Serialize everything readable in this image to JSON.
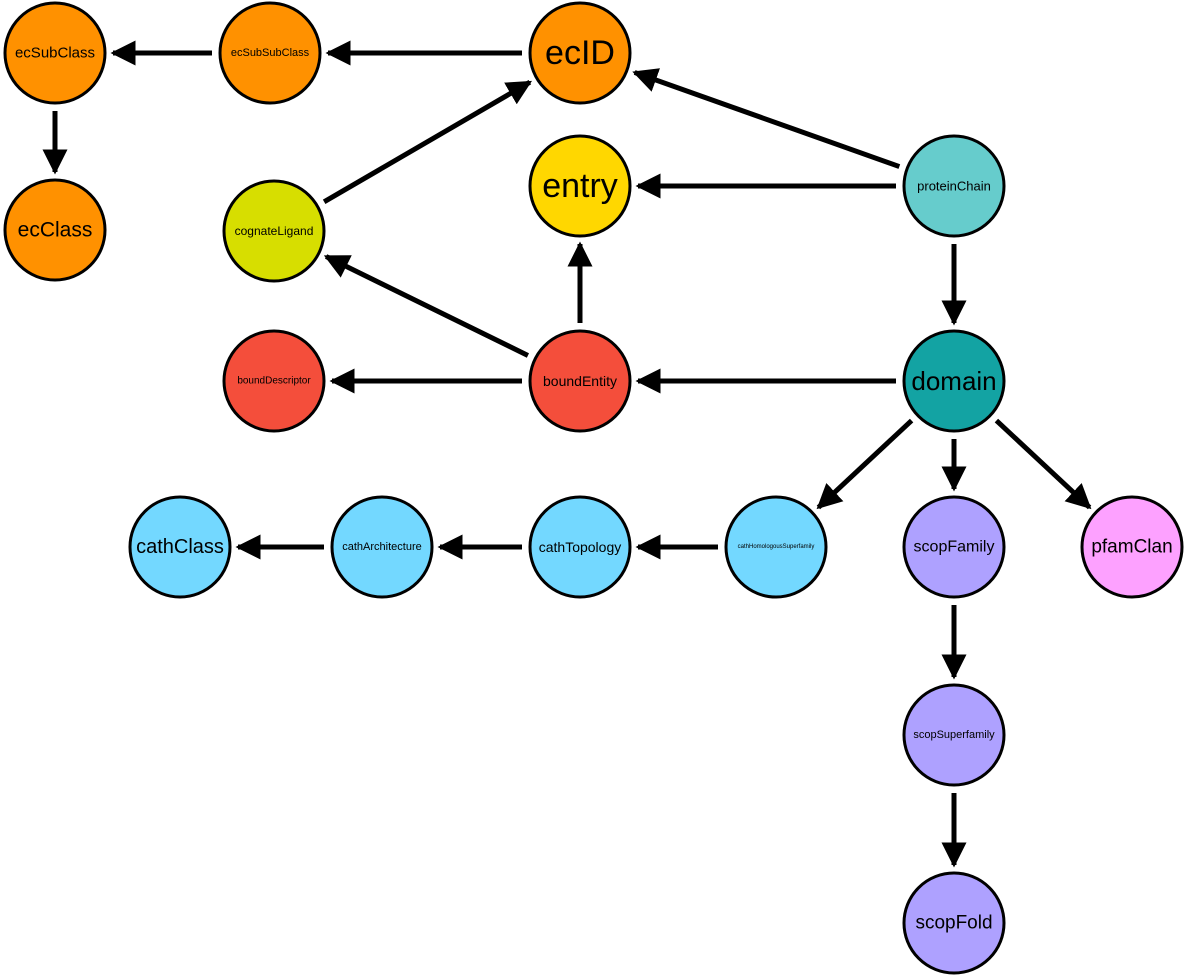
{
  "colors": {
    "ec": "#FF9100",
    "entry": "#FFD700",
    "ligand": "#D7DE00",
    "bound": "#F44E3B",
    "chain": "#66CCCC",
    "domain": "#13A3A3",
    "cath": "#73D8FF",
    "scop": "#AEA1FF",
    "pfam": "#FDA1FF"
  },
  "nodes": [
    {
      "id": "ecSubClass",
      "label": "ecSubClass",
      "color": "ec"
    },
    {
      "id": "ecSubSubClass",
      "label": "ecSubSubClass",
      "color": "ec"
    },
    {
      "id": "ecID",
      "label": "ecID",
      "color": "ec"
    },
    {
      "id": "ecClass",
      "label": "ecClass",
      "color": "ec"
    },
    {
      "id": "entry",
      "label": "entry",
      "color": "entry"
    },
    {
      "id": "proteinChain",
      "label": "proteinChain",
      "color": "chain"
    },
    {
      "id": "cognateLigand",
      "label": "cognateLigand",
      "color": "ligand"
    },
    {
      "id": "boundDescriptor",
      "label": "boundDescriptor",
      "color": "bound"
    },
    {
      "id": "boundEntity",
      "label": "boundEntity",
      "color": "bound"
    },
    {
      "id": "domain",
      "label": "domain",
      "color": "domain"
    },
    {
      "id": "cathClass",
      "label": "cathClass",
      "color": "cath"
    },
    {
      "id": "cathArchitecture",
      "label": "cathArchitecture",
      "color": "cath"
    },
    {
      "id": "cathTopology",
      "label": "cathTopology",
      "color": "cath"
    },
    {
      "id": "cathHomologousSuperfamily",
      "label": "cathHomologousSuperfamily",
      "color": "cath"
    },
    {
      "id": "scopFamily",
      "label": "scopFamily",
      "color": "scop"
    },
    {
      "id": "pfamClan",
      "label": "pfamClan",
      "color": "pfam"
    },
    {
      "id": "scopSuperfamily",
      "label": "scopSuperfamily",
      "color": "scop"
    },
    {
      "id": "scopFold",
      "label": "scopFold",
      "color": "scop"
    }
  ],
  "edges": [
    {
      "from": "ecSubSubClass",
      "to": "ecSubClass"
    },
    {
      "from": "ecID",
      "to": "ecSubSubClass"
    },
    {
      "from": "ecSubClass",
      "to": "ecClass"
    },
    {
      "from": "cognateLigand",
      "to": "ecID"
    },
    {
      "from": "proteinChain",
      "to": "ecID"
    },
    {
      "from": "proteinChain",
      "to": "entry"
    },
    {
      "from": "proteinChain",
      "to": "domain"
    },
    {
      "from": "boundEntity",
      "to": "entry"
    },
    {
      "from": "boundEntity",
      "to": "cognateLigand"
    },
    {
      "from": "boundEntity",
      "to": "boundDescriptor"
    },
    {
      "from": "domain",
      "to": "boundEntity"
    },
    {
      "from": "domain",
      "to": "cathHomologousSuperfamily"
    },
    {
      "from": "domain",
      "to": "scopFamily"
    },
    {
      "from": "domain",
      "to": "pfamClan"
    },
    {
      "from": "cathHomologousSuperfamily",
      "to": "cathTopology"
    },
    {
      "from": "cathTopology",
      "to": "cathArchitecture"
    },
    {
      "from": "cathArchitecture",
      "to": "cathClass"
    },
    {
      "from": "scopFamily",
      "to": "scopSuperfamily"
    },
    {
      "from": "scopSuperfamily",
      "to": "scopFold"
    }
  ]
}
